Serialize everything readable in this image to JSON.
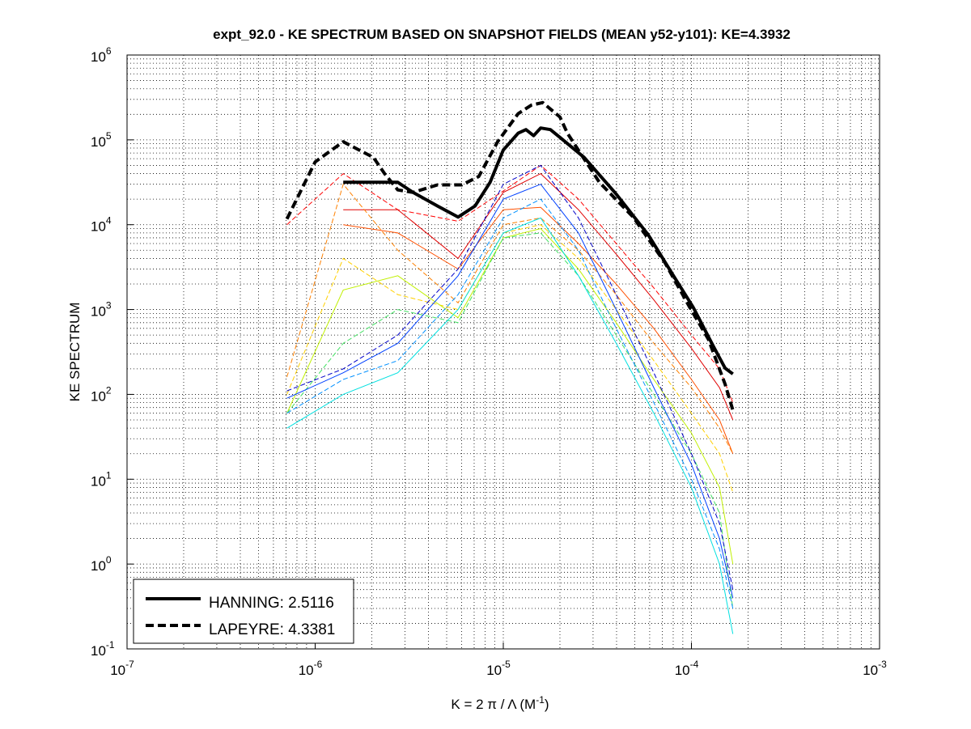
{
  "chart_data": {
    "type": "line",
    "title": "expt_92.0 - KE SPECTRUM BASED ON SNAPSHOT FIELDS (MEAN y52-y101): KE=4.3932",
    "xlabel": "K = 2 π / Λ  (M",
    "xlabel_exp": "-1",
    "xlabel_close": ")",
    "ylabel": "KE SPECTRUM",
    "xscale": "log",
    "yscale": "log",
    "xlim": [
      1e-07,
      0.001
    ],
    "ylim": [
      0.1,
      1000000
    ],
    "grid": true,
    "tick_base": "10",
    "x_tick_exponents": [
      "-7",
      "-6",
      "-5",
      "-4",
      "-3"
    ],
    "y_tick_exponents": [
      "-1",
      "0",
      "1",
      "2",
      "3",
      "4",
      "5",
      "6"
    ],
    "legend": {
      "placement": "bottom-left",
      "entries": [
        {
          "label": "HANNING: 2.5116",
          "style": "solid"
        },
        {
          "label": "LAPEYRE: 4.3381",
          "style": "dashed"
        }
      ]
    },
    "main_series": [
      {
        "name": "HANNING",
        "style": "solid",
        "color": "#000000",
        "x": [
          1.41e-06,
          2.75e-06,
          3.31e-06,
          4.47e-06,
          5.75e-06,
          7.08e-06,
          8.51e-06,
          1e-05,
          1.2e-05,
          1.32e-05,
          1.45e-05,
          1.58e-05,
          1.78e-05,
          2e-05,
          2.69e-05,
          3.98e-05,
          5.89e-05,
          7.94e-05,
          0.000102,
          0.000132,
          0.000151,
          0.000166
        ],
        "y": [
          31600,
          31600,
          24000,
          16600,
          12300,
          16600,
          31600,
          76000,
          120000,
          132000,
          112000,
          138000,
          132000,
          107000,
          62000,
          23000,
          7600,
          2600,
          1070,
          355,
          204,
          174
        ]
      },
      {
        "name": "LAPEYRE",
        "style": "dashed",
        "color": "#000000",
        "x": [
          7.08e-07,
          1e-06,
          1.41e-06,
          2.04e-06,
          2.34e-06,
          2.75e-06,
          3.31e-06,
          4.47e-06,
          6.03e-06,
          7.41e-06,
          9.33e-06,
          1.2e-05,
          1.41e-05,
          1.62e-05,
          2e-05,
          2.19e-05,
          3.24e-05,
          4.9e-05,
          7.24e-05,
          9.77e-05,
          0.000123,
          0.000151,
          0.000166
        ],
        "y": [
          11700,
          55000,
          95000,
          62000,
          40000,
          25700,
          24000,
          29500,
          29500,
          37000,
          95000,
          204000,
          257000,
          275000,
          186000,
          120000,
          31600,
          12300,
          3550,
          1070,
          447,
          132,
          65
        ]
      }
    ],
    "color_series_x": [
      7.08e-07,
      1.41e-06,
      2.75e-06,
      5.75e-06,
      1e-05,
      1.58e-05,
      2.51e-05,
      3.98e-05,
      6.31e-05,
      0.0001,
      0.000141,
      0.000166
    ],
    "color_series": [
      {
        "color": "#ff0000",
        "style": "dashed",
        "y": [
          10000,
          40000,
          15000,
          11000,
          25000,
          50000,
          20000,
          6000,
          1800,
          500,
          200,
          80
        ]
      },
      {
        "color": "#e00000",
        "style": "solid",
        "y": [
          null,
          15000,
          15000,
          4000,
          24000,
          40000,
          15000,
          4500,
          1300,
          350,
          120,
          50
        ]
      },
      {
        "color": "#ff5000",
        "style": "solid",
        "y": [
          null,
          10000,
          8000,
          3000,
          15000,
          16000,
          6000,
          2000,
          600,
          150,
          50,
          20
        ]
      },
      {
        "color": "#ff8000",
        "style": "dashed",
        "y": [
          160,
          30000,
          5000,
          1200,
          10000,
          12000,
          5000,
          1500,
          400,
          120,
          40,
          20
        ]
      },
      {
        "color": "#ffd000",
        "style": "dashed",
        "y": [
          100,
          4000,
          1500,
          1000,
          8000,
          10000,
          4000,
          1000,
          250,
          60,
          20,
          7
        ]
      },
      {
        "color": "#c0f000",
        "style": "solid",
        "y": [
          60,
          1700,
          2500,
          800,
          7000,
          9000,
          3000,
          700,
          150,
          35,
          8,
          1
        ]
      },
      {
        "color": "#40e060",
        "style": "dashed",
        "y": [
          60,
          400,
          1000,
          700,
          7000,
          8000,
          2500,
          500,
          100,
          20,
          4,
          0.3
        ]
      },
      {
        "color": "#00e0e0",
        "style": "solid",
        "y": [
          40,
          100,
          180,
          1000,
          8000,
          12000,
          2500,
          400,
          60,
          8,
          1,
          0.15
        ]
      },
      {
        "color": "#0090ff",
        "style": "dashed",
        "y": [
          60,
          150,
          250,
          1500,
          12000,
          20000,
          5000,
          600,
          80,
          10,
          1.5,
          0.3
        ]
      },
      {
        "color": "#0040ff",
        "style": "solid",
        "y": [
          90,
          180,
          400,
          2500,
          20000,
          30000,
          8000,
          1000,
          120,
          15,
          2,
          0.4
        ]
      },
      {
        "color": "#0000c8",
        "style": "dashed",
        "y": [
          110,
          200,
          500,
          3000,
          30000,
          50000,
          12000,
          1500,
          180,
          20,
          3,
          0.5
        ]
      }
    ]
  }
}
